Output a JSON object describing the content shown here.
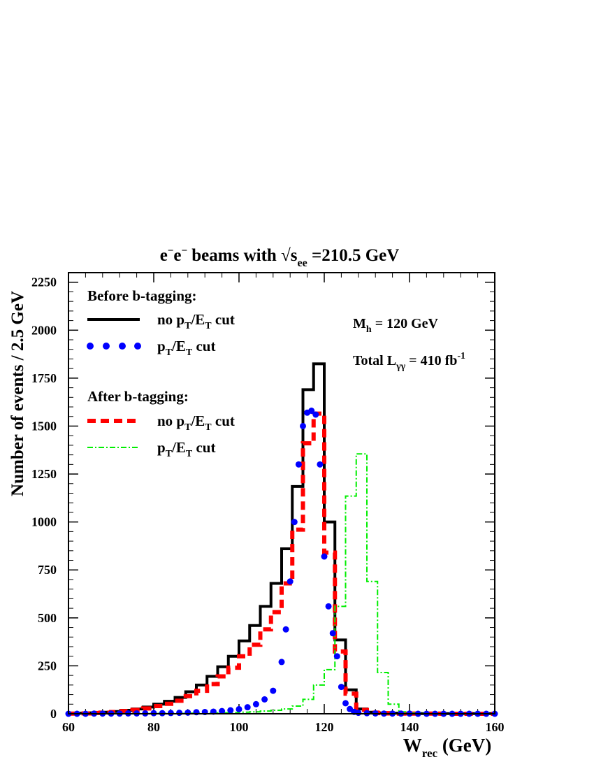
{
  "chart_data": {
    "type": "line",
    "title": {
      "beams": "e",
      "beams_sup": "−",
      "beams2": "e",
      "beams2_sup": "−",
      "mid": " beams with √s",
      "sub": "ee",
      "tail": " =210.5 GeV"
    },
    "xlabel": {
      "main": "W",
      "sub": "rec",
      "tail": " (GeV)"
    },
    "ylabel": "Number of events / 2.5 GeV",
    "xlim": [
      60,
      160
    ],
    "ylim": [
      0,
      2300
    ],
    "x_ticks": [
      "60",
      "80",
      "100",
      "120",
      "140",
      "160"
    ],
    "y_ticks": [
      "0",
      "250",
      "500",
      "750",
      "1000",
      "1250",
      "1500",
      "1750",
      "2000",
      "2250"
    ],
    "bin_edges_start": 60,
    "bin_width": 2.5,
    "legend": {
      "before_header": "Before b-tagging:",
      "after_header": "After b-tagging:",
      "entries": [
        {
          "p": "no p",
          "s1": "T",
          "m": "/E",
          "s2": "T",
          "t": " cut"
        },
        {
          "p": "p",
          "s1": "T",
          "m": "/E",
          "s2": "T",
          "t": " cut"
        },
        {
          "p": "no p",
          "s1": "T",
          "m": "/E",
          "s2": "T",
          "t": " cut"
        },
        {
          "p": "p",
          "s1": "T",
          "m": "/E",
          "s2": "T",
          "t": " cut"
        }
      ]
    },
    "annotations": {
      "mass": {
        "main": "M",
        "sub": "h",
        "tail": " = 120 GeV"
      },
      "lumi": {
        "main": "Total L",
        "sub": "γγ",
        "tail": " = 410 fb",
        "sup": "-1"
      }
    },
    "series": [
      {
        "style": "solid-step",
        "color": "#000000",
        "values": [
          2,
          3,
          5,
          8,
          12,
          18,
          25,
          35,
          50,
          65,
          85,
          115,
          150,
          195,
          245,
          300,
          380,
          460,
          560,
          680,
          860,
          1185,
          1690,
          1825,
          1000,
          385,
          125,
          25,
          8,
          4,
          3,
          2,
          2,
          1,
          1,
          1,
          1,
          1,
          1,
          1
        ]
      },
      {
        "style": "dotted-markers",
        "color": "#0000ff",
        "x": [
          60,
          62,
          64,
          66,
          68,
          70,
          72,
          74,
          76,
          78,
          80,
          82,
          84,
          86,
          88,
          90,
          92,
          94,
          96,
          98,
          100,
          102,
          104,
          106,
          108,
          110,
          111,
          112,
          113,
          114,
          115,
          116,
          117,
          118,
          119,
          120,
          121,
          122,
          123,
          124,
          125,
          126,
          127,
          128,
          130,
          132,
          134,
          136,
          138,
          140,
          142,
          144,
          146,
          148,
          150,
          152,
          154,
          156,
          158,
          160
        ],
        "values": [
          0,
          0,
          0,
          1,
          1,
          1,
          1,
          2,
          2,
          2,
          3,
          3,
          4,
          5,
          6,
          8,
          9,
          11,
          14,
          18,
          24,
          34,
          50,
          75,
          120,
          270,
          440,
          690,
          1000,
          1300,
          1500,
          1570,
          1580,
          1560,
          1300,
          820,
          560,
          420,
          300,
          140,
          55,
          25,
          10,
          5,
          3,
          2,
          1,
          1,
          1,
          1,
          0,
          0,
          0,
          0,
          0,
          0,
          0,
          0,
          0,
          0
        ]
      },
      {
        "style": "dashed-step",
        "color": "#ff0000",
        "values": [
          1,
          2,
          4,
          6,
          9,
          14,
          20,
          28,
          40,
          52,
          68,
          92,
          120,
          155,
          195,
          240,
          300,
          360,
          440,
          530,
          680,
          960,
          1410,
          1565,
          840,
          325,
          105,
          20,
          6,
          3,
          2,
          1,
          1,
          1,
          1,
          0,
          0,
          0,
          0,
          0
        ]
      },
      {
        "style": "dashdot-step",
        "color": "#00ee00",
        "values": [
          0,
          0,
          0,
          0,
          1,
          1,
          1,
          1,
          2,
          2,
          2,
          3,
          3,
          4,
          5,
          6,
          8,
          10,
          14,
          18,
          25,
          40,
          75,
          150,
          230,
          560,
          1135,
          1355,
          690,
          215,
          50,
          10,
          3,
          1,
          1,
          0,
          0,
          0,
          0,
          0
        ]
      }
    ]
  }
}
